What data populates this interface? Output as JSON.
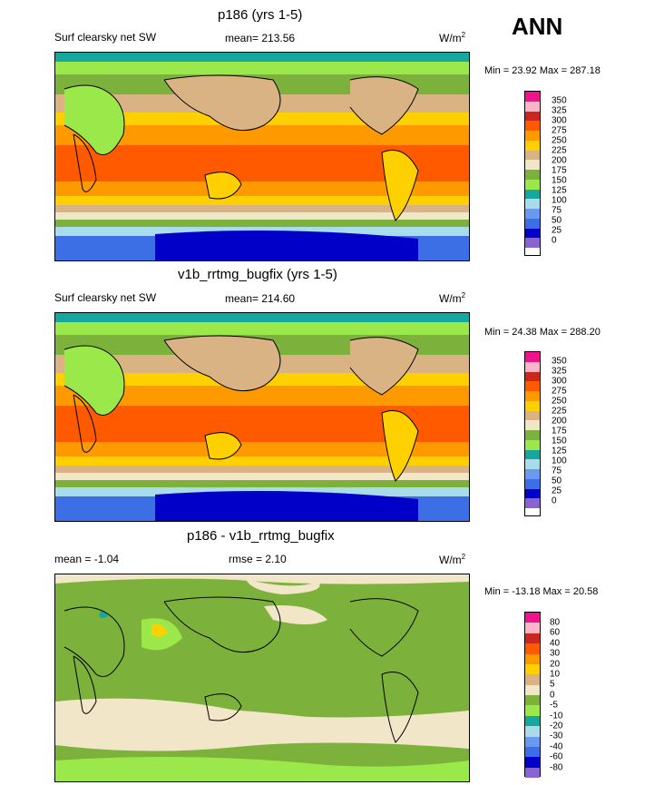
{
  "season": "ANN",
  "panels": [
    {
      "title": "p186 (yrs 1-5)",
      "variable": "Surf clearsky net SW",
      "stat": "mean= 213.56",
      "units_base": "W/m",
      "units_exp": "2",
      "minmax": "Min =  23.92 Max = 287.18",
      "legend": [
        "350",
        "325",
        "300",
        "275",
        "250",
        "225",
        "200",
        "175",
        "150",
        "125",
        "100",
        "75",
        "50",
        "25",
        "0"
      ]
    },
    {
      "title": "v1b_rrtmg_bugfix (yrs 1-5)",
      "variable": "Surf clearsky net SW",
      "stat": "mean= 214.60",
      "units_base": "W/m",
      "units_exp": "2",
      "minmax": "Min =  24.38 Max = 288.20",
      "legend": [
        "350",
        "325",
        "300",
        "275",
        "250",
        "225",
        "200",
        "175",
        "150",
        "125",
        "100",
        "75",
        "50",
        "25",
        "0"
      ]
    },
    {
      "title": "p186 - v1b_rrtmg_bugfix",
      "variable": "mean =  -1.04",
      "stat": "rmse =   2.10",
      "units_base": "W/m",
      "units_exp": "2",
      "minmax": "Min = -13.18 Max =  20.58",
      "legend": [
        "80",
        "60",
        "40",
        "30",
        "20",
        "10",
        "5",
        "0",
        "-5",
        "-10",
        "-20",
        "-30",
        "-40",
        "-60",
        "-80"
      ]
    }
  ],
  "colors": {
    "fill_bins": [
      "#8a63d2",
      "#0000c8",
      "#3c6ee6",
      "#6a9af0",
      "#a8dcea",
      "#16a89e",
      "#9be84a",
      "#7cb23c",
      "#f2e6c8",
      "#d9b383",
      "#fed000",
      "#fe9a00",
      "#ff5a00",
      "#c8281e",
      "#fcb4c8",
      "#f0148c"
    ],
    "land_outline": "#000000"
  }
}
